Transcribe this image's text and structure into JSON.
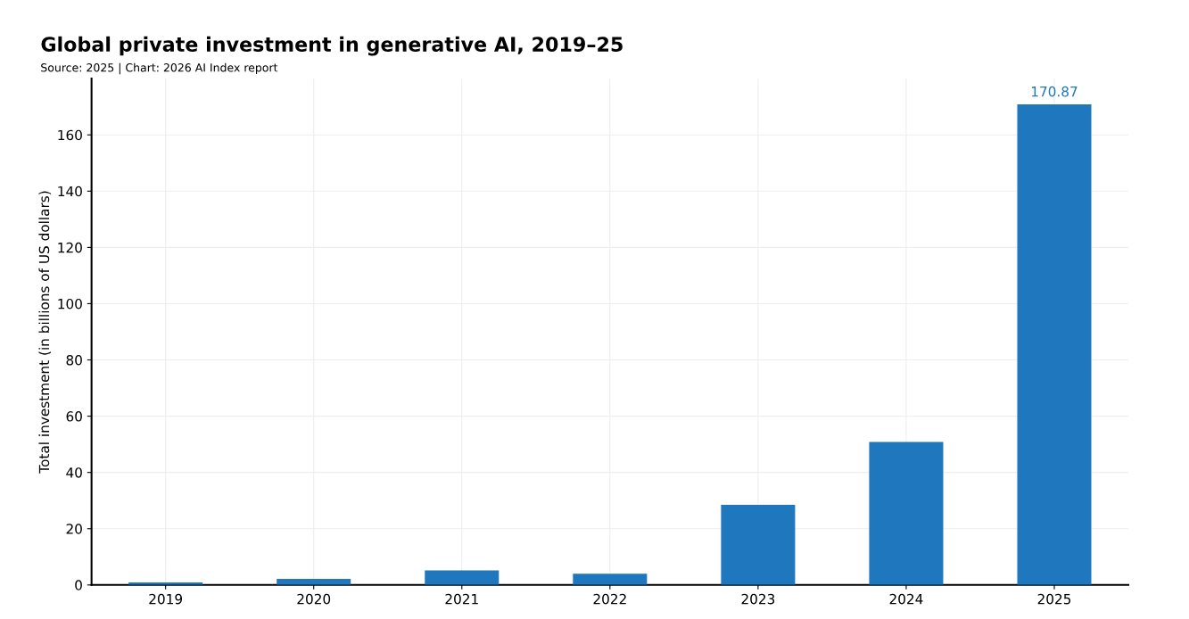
{
  "chart_data": {
    "type": "bar",
    "title": "Global private investment in generative AI, 2019–25",
    "subtitle": "Source: 2025 | Chart: 2026 AI Index report",
    "ylabel": "Total investment (in billions of US dollars)",
    "categories": [
      "2019",
      "2020",
      "2021",
      "2022",
      "2023",
      "2024",
      "2025"
    ],
    "values": [
      0.9,
      2.2,
      5.2,
      4.0,
      28.5,
      50.8,
      170.87
    ],
    "value_labels": [
      null,
      null,
      null,
      null,
      null,
      null,
      "170.87"
    ],
    "color": "#1f77bd",
    "ylim": [
      0,
      180
    ],
    "yticks": [
      0,
      20,
      40,
      60,
      80,
      100,
      120,
      140,
      160
    ],
    "grid": true
  }
}
